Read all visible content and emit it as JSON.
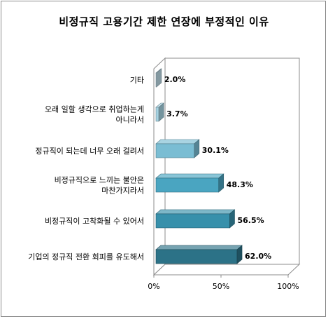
{
  "chart_data": {
    "type": "bar",
    "orientation": "horizontal",
    "title": "비정규직 고용기간 제한 연장에 부정적인 이유",
    "categories": [
      [
        "기타"
      ],
      [
        "오래 일할 생각으로 취업하는게",
        "아니라서"
      ],
      [
        "정규직이 되는데 너무 오래 걸려서"
      ],
      [
        "비정규직으로 느끼는 불안은",
        "마찬가지라서"
      ],
      [
        "비정규직이 고착화될 수 있어서"
      ],
      [
        "기업의 정규직 전환 회피를 유도해서"
      ]
    ],
    "values": [
      2.0,
      3.7,
      30.1,
      48.3,
      56.5,
      62.0
    ],
    "value_labels": [
      "2.0%",
      "3.7%",
      "30.1%",
      "48.3%",
      "56.5%",
      "62.0%"
    ],
    "xlim": [
      0,
      100
    ],
    "x_ticks": [
      0,
      50,
      100
    ],
    "x_tick_labels": [
      "0%",
      "50%",
      "100%"
    ],
    "bar_colors": [
      "#bcdbe6",
      "#a6d3e2",
      "#7abdd3",
      "#4aa5c1",
      "#3790ab",
      "#2c7287"
    ],
    "legend": "none",
    "grid": false,
    "style": "3d"
  }
}
